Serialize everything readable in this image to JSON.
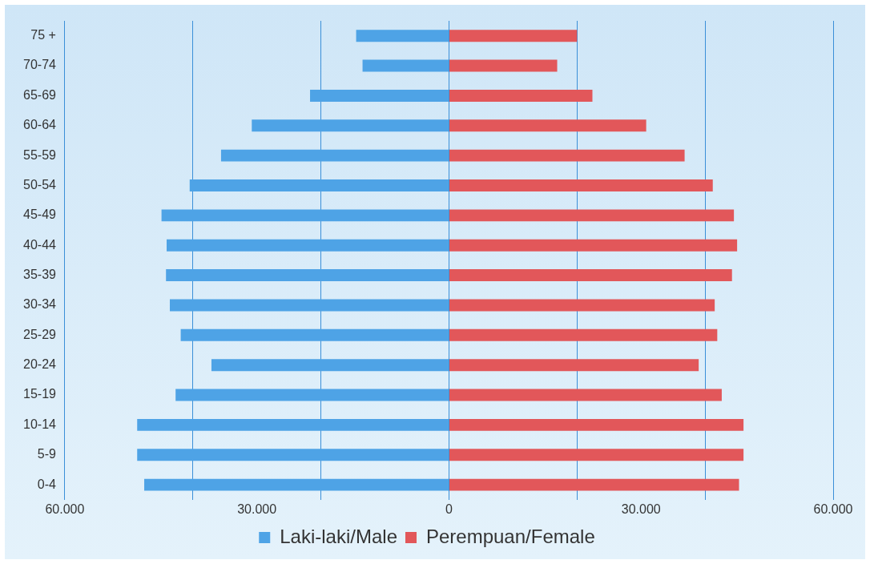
{
  "chart_data": {
    "type": "bar",
    "orientation": "horizontal",
    "stacked": true,
    "categories": [
      "75 +",
      "70-74",
      "65-69",
      "60-64",
      "55-59",
      "50-54",
      "45-49",
      "40-44",
      "35-39",
      "30-34",
      "25-29",
      "20-24",
      "15-19",
      "10-14",
      "5-9",
      "0-4"
    ],
    "series": [
      {
        "name": "Laki-laki/Male",
        "color": "#4ea3e6",
        "values": [
          -14500,
          -13500,
          -21700,
          -30800,
          -35600,
          -40500,
          -44900,
          -44100,
          -44200,
          -43600,
          -41900,
          -37100,
          -42700,
          -48700,
          -48700,
          -47600
        ]
      },
      {
        "name": "Perempuan/Female",
        "color": "#e2575a",
        "values": [
          20000,
          16900,
          22400,
          30800,
          36800,
          41200,
          44500,
          45000,
          44200,
          41500,
          41900,
          39000,
          42600,
          46000,
          46000,
          45300
        ]
      }
    ],
    "xlim": [
      -60000,
      60000
    ],
    "xticks": [
      {
        "value": -60000,
        "label": "60.000"
      },
      {
        "value": -40000,
        "label": null
      },
      {
        "value": -30000,
        "label": "30.000"
      },
      {
        "value": -20000,
        "label": null
      },
      {
        "value": 0,
        "label": "0"
      },
      {
        "value": 20000,
        "label": null
      },
      {
        "value": 30000,
        "label": "30.000"
      },
      {
        "value": 40000,
        "label": null
      },
      {
        "value": 60000,
        "label": "60.000"
      }
    ],
    "grid": "x",
    "legend": "bottom"
  }
}
